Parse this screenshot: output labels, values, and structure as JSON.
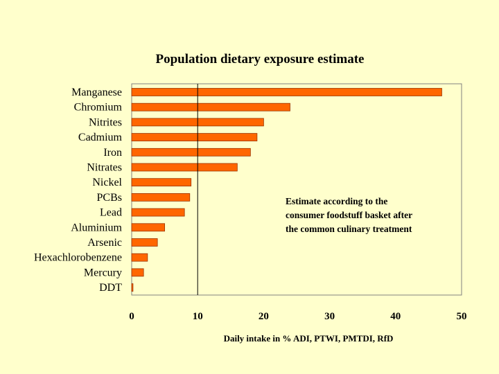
{
  "chart_data": {
    "type": "bar",
    "orientation": "horizontal",
    "title": "Population dietary exposure estimate",
    "categories": [
      "Manganese",
      "Chromium",
      "Nitrites",
      "Cadmium",
      "Iron",
      "Nitrates",
      "Nickel",
      "PCBs",
      "Lead",
      "Aluminium",
      "Arsenic",
      "Hexachlorobenzene",
      "Mercury",
      "DDT"
    ],
    "values": [
      47,
      24,
      20,
      19,
      18,
      16,
      9,
      8.8,
      8,
      5,
      3.9,
      2.4,
      1.8,
      0.2
    ],
    "xlabel": "Daily intake in % ADI, PTWI, PMTDI, RfD",
    "ylabel": "",
    "xlim": [
      0,
      50
    ],
    "xticks": [
      0,
      10,
      20,
      30,
      40,
      50
    ],
    "reference_line_x": 10,
    "annotation": [
      "Estimate according to the",
      "consumer foodstuff basket after",
      "the common culinary treatment"
    ],
    "bar_color": "#FF6600",
    "bar_edge_color": "#993300",
    "plot_background": "#FFFFCC",
    "grid": false,
    "legend": "none"
  }
}
